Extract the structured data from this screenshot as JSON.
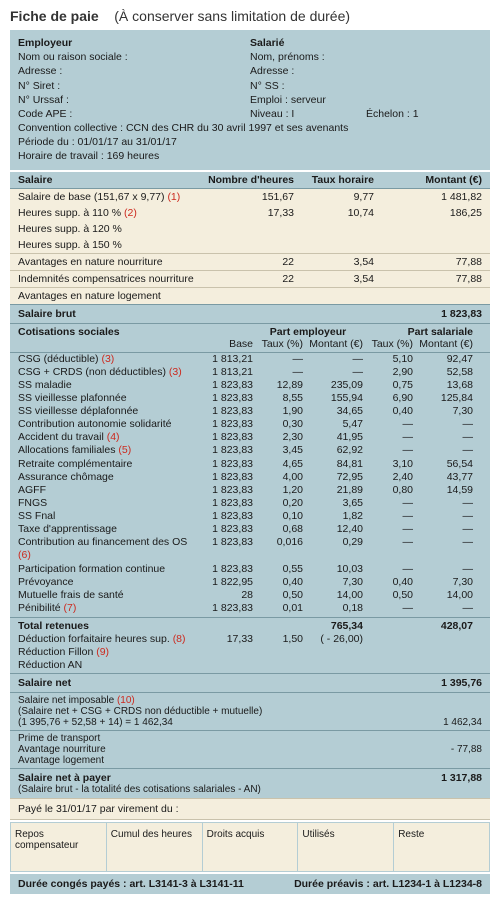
{
  "title_main": "Fiche de paie",
  "title_sub": "(À conserver sans limitation de durée)",
  "employer": {
    "heading": "Employeur",
    "l1": "Nom ou raison sociale :",
    "l2": "Adresse :",
    "l3": "N° Siret :",
    "l4": "N° Urssaf :",
    "l5": "Code APE :"
  },
  "employee": {
    "heading": "Salarié",
    "l1": "Nom, prénoms :",
    "l2": "Adresse :",
    "l3": "N° SS :",
    "l4": "Emploi : serveur",
    "l5a": "Niveau : I",
    "l5b": "Échelon : 1"
  },
  "conv": "Convention collective : CCN des CHR du 30 avril 1997 et ses avenants",
  "periode": "Période du : 01/01/17 au 31/01/17",
  "horaire": "Horaire de travail : 169 heures",
  "sal_header": {
    "c1": "Salaire",
    "c2": "Nombre d'heures",
    "c3": "Taux horaire",
    "c4": "Montant (€)"
  },
  "sal_rows": [
    {
      "label": "Salaire de base (151,67 x 9,77)",
      "note": "(1)",
      "h": "151,67",
      "t": "9,77",
      "m": "1 481,82"
    },
    {
      "label": "Heures supp. à 110 %",
      "note": "(2)",
      "h": "17,33",
      "t": "10,74",
      "m": "186,25"
    },
    {
      "label": "Heures supp. à 120 %",
      "note": "",
      "h": "",
      "t": "",
      "m": ""
    },
    {
      "label": "Heures supp. à 150 %",
      "note": "",
      "h": "",
      "t": "",
      "m": ""
    }
  ],
  "sal_av1": {
    "label": "Avantages en nature nourriture",
    "h": "22",
    "t": "3,54",
    "m": "77,88"
  },
  "sal_av2": {
    "label": "Indemnités compensatrices nourriture",
    "h": "22",
    "t": "3,54",
    "m": "77,88"
  },
  "sal_av3": {
    "label": "Avantages en nature logement"
  },
  "sal_brut": {
    "label": "Salaire brut",
    "m": "1 823,83"
  },
  "cot_header": {
    "title": "Cotisations sociales",
    "base": "Base",
    "emp": "Part employeur",
    "sal": "Part salariale",
    "taux": "Taux (%)",
    "mont": "Montant (€)"
  },
  "cot_rows": [
    {
      "l": "CSG (déductible)",
      "n": "(3)",
      "b": "1 813,21",
      "et": "—",
      "em": "—",
      "st": "5,10",
      "sm": "92,47"
    },
    {
      "l": "CSG + CRDS (non déductibles)",
      "n": "(3)",
      "b": "1 813,21",
      "et": "—",
      "em": "—",
      "st": "2,90",
      "sm": "52,58"
    },
    {
      "l": "SS maladie",
      "n": "",
      "b": "1 823,83",
      "et": "12,89",
      "em": "235,09",
      "st": "0,75",
      "sm": "13,68"
    },
    {
      "l": "SS vieillesse plafonnée",
      "n": "",
      "b": "1 823,83",
      "et": "8,55",
      "em": "155,94",
      "st": "6,90",
      "sm": "125,84"
    },
    {
      "l": "SS vieillesse déplafonnée",
      "n": "",
      "b": "1 823,83",
      "et": "1,90",
      "em": "34,65",
      "st": "0,40",
      "sm": "7,30"
    },
    {
      "l": "Contribution autonomie solidarité",
      "n": "",
      "b": "1 823,83",
      "et": "0,30",
      "em": "5,47",
      "st": "—",
      "sm": "—"
    },
    {
      "l": "Accident du travail",
      "n": "(4)",
      "b": "1 823,83",
      "et": "2,30",
      "em": "41,95",
      "st": "—",
      "sm": "—"
    },
    {
      "l": "Allocations familiales",
      "n": "(5)",
      "b": "1 823,83",
      "et": "3,45",
      "em": "62,92",
      "st": "—",
      "sm": "—"
    },
    {
      "l": "Retraite complémentaire",
      "n": "",
      "b": "1 823,83",
      "et": "4,65",
      "em": "84,81",
      "st": "3,10",
      "sm": "56,54"
    },
    {
      "l": "Assurance chômage",
      "n": "",
      "b": "1 823,83",
      "et": "4,00",
      "em": "72,95",
      "st": "2,40",
      "sm": "43,77"
    },
    {
      "l": "AGFF",
      "n": "",
      "b": "1 823,83",
      "et": "1,20",
      "em": "21,89",
      "st": "0,80",
      "sm": "14,59"
    },
    {
      "l": "FNGS",
      "n": "",
      "b": "1 823,83",
      "et": "0,20",
      "em": "3,65",
      "st": "—",
      "sm": "—"
    },
    {
      "l": "SS Fnal",
      "n": "",
      "b": "1 823,83",
      "et": "0,10",
      "em": "1,82",
      "st": "—",
      "sm": "—"
    },
    {
      "l": "Taxe d'apprentissage",
      "n": "",
      "b": "1 823,83",
      "et": "0,68",
      "em": "12,40",
      "st": "—",
      "sm": "—"
    },
    {
      "l": "Contribution au financement des OS",
      "n": "(6)",
      "b": "1 823,83",
      "et": "0,016",
      "em": "0,29",
      "st": "—",
      "sm": "—"
    },
    {
      "l": "Participation formation continue",
      "n": "",
      "b": "1 823,83",
      "et": "0,55",
      "em": "10,03",
      "st": "—",
      "sm": "—"
    },
    {
      "l": "Prévoyance",
      "n": "",
      "b": "1 822,95",
      "et": "0,40",
      "em": "7,30",
      "st": "0,40",
      "sm": "7,30"
    },
    {
      "l": "Mutuelle frais de santé",
      "n": "",
      "b": "28",
      "et": "0,50",
      "em": "14,00",
      "st": "0,50",
      "sm": "14,00"
    },
    {
      "l": "Pénibilité",
      "n": "(7)",
      "b": "1 823,83",
      "et": "0,01",
      "em": "0,18",
      "st": "—",
      "sm": "—"
    }
  ],
  "tot_retenues": {
    "label": "Total retenues",
    "em": "765,34",
    "sm": "428,07"
  },
  "deduc": {
    "l": "Déduction forfaitaire heures sup.",
    "n": "(8)",
    "b": "17,33",
    "et": "1,50",
    "em": "( - 26,00)"
  },
  "red_fillon": {
    "l": "Réduction Fillon",
    "n": "(9)"
  },
  "red_an": {
    "l": "Réduction AN"
  },
  "sal_net": {
    "label": "Salaire net",
    "m": "1 395,76"
  },
  "net_imp": {
    "label": "Salaire net imposable",
    "note": "(10)",
    "formula": "(Salaire net + CSG + CRDS non déductible + mutuelle)",
    "calc": "(1 395,76 + 52,58 + 14) = 1 462,34",
    "m": "1 462,34"
  },
  "prime": {
    "label": "Prime de transport"
  },
  "av_nour": {
    "label": "Avantage nourriture",
    "m": "- 77,88"
  },
  "av_log": {
    "label": "Avantage logement"
  },
  "net_payer": {
    "label": "Salaire net à payer",
    "sub": "(Salaire brut - la totalité des cotisations salariales - AN)",
    "m": "1 317,88"
  },
  "paye": "Payé le 31/01/17 par virement du :",
  "boxes": [
    "Repos compensateur",
    "Cumul des heures",
    "Droits acquis",
    "Utilisés",
    "Reste"
  ],
  "footer": {
    "l": "Durée congés payés : art. L3141-3 à L3141-11",
    "r": "Durée préavis : art. L1234-1 à L1234-8"
  }
}
